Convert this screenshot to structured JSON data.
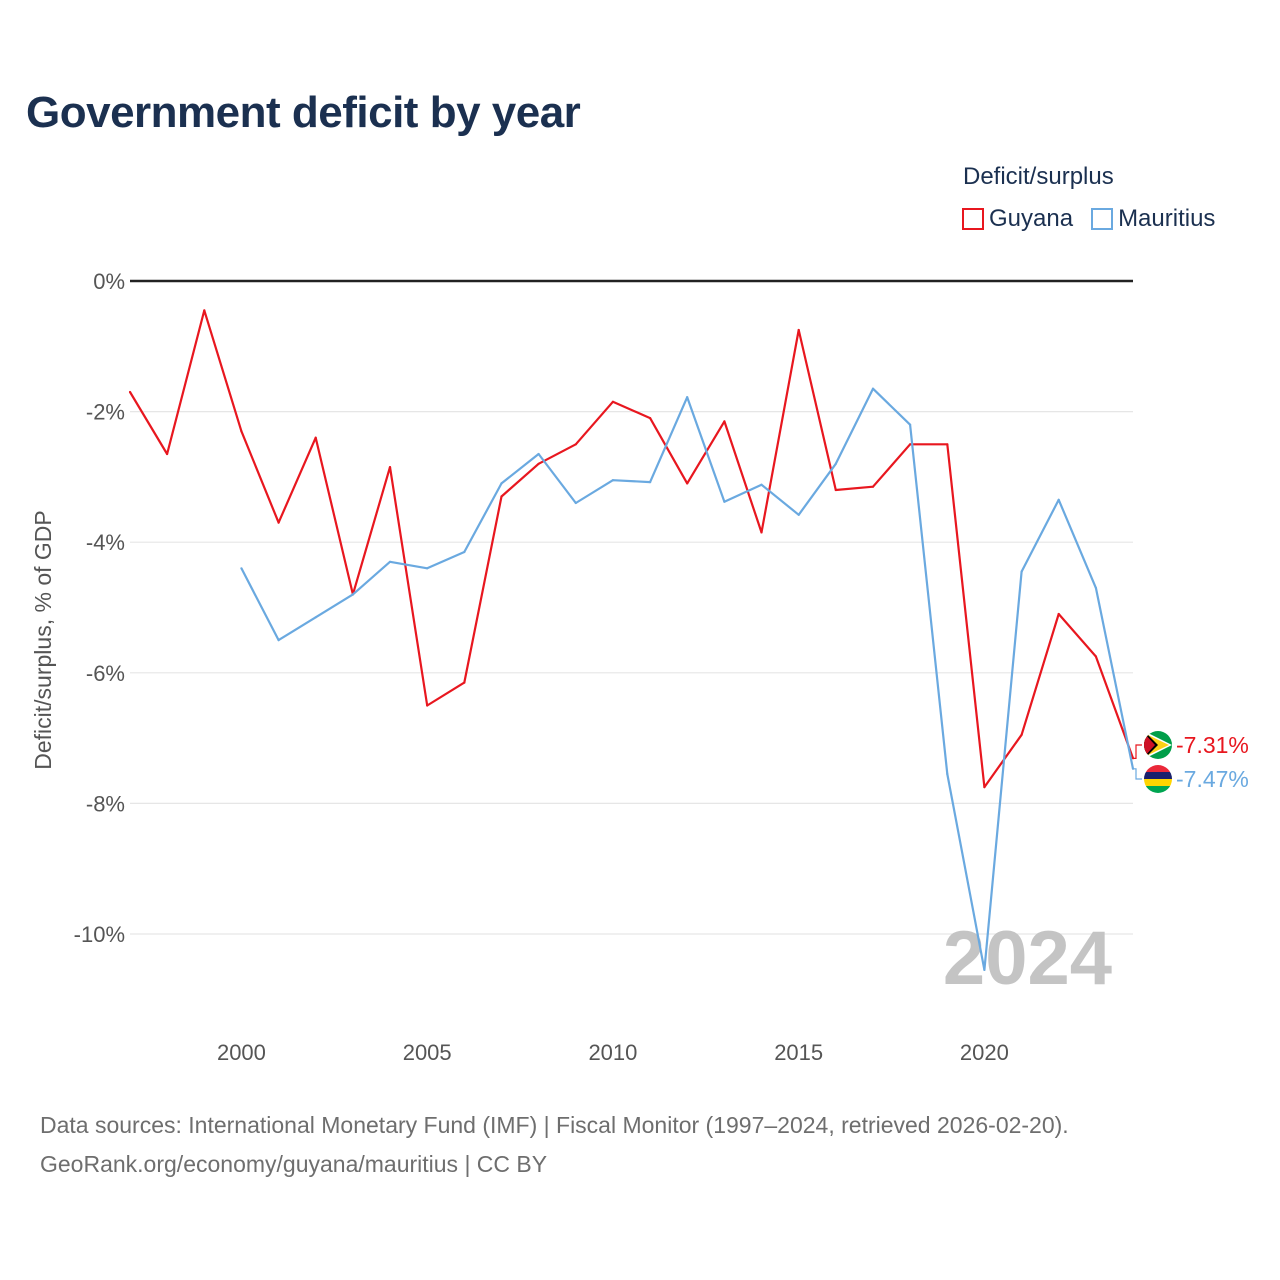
{
  "title": "Government deficit by year",
  "legend": {
    "title": "Deficit/surplus",
    "items": [
      {
        "name": "Guyana",
        "color": "#e8171f"
      },
      {
        "name": "Mauritius",
        "color": "#6aa9e0"
      }
    ]
  },
  "chart_data": {
    "type": "line",
    "title": "Government deficit by year",
    "xlabel": "",
    "ylabel": "Deficit/surplus, % of GDP",
    "xlim": [
      1997,
      2024
    ],
    "ylim": [
      -11.5,
      0
    ],
    "yticks": [
      0,
      -2,
      -4,
      -6,
      -8,
      -10
    ],
    "ytick_labels": [
      "0%",
      "-2%",
      "-4%",
      "-6%",
      "-8%",
      "-10%"
    ],
    "xticks": [
      2000,
      2005,
      2010,
      2015,
      2020
    ],
    "xtick_labels": [
      "2000",
      "2005",
      "2010",
      "2015",
      "2020"
    ],
    "watermark": "2024",
    "series": [
      {
        "name": "Guyana",
        "color": "#e8171f",
        "end_label": "-7.31%",
        "x": [
          1997,
          1998,
          1999,
          2000,
          2001,
          2002,
          2003,
          2004,
          2005,
          2006,
          2007,
          2008,
          2009,
          2010,
          2011,
          2012,
          2013,
          2014,
          2015,
          2016,
          2017,
          2018,
          2019,
          2020,
          2021,
          2022,
          2023,
          2024
        ],
        "values": [
          -1.7,
          -2.65,
          -0.45,
          -2.3,
          -3.7,
          -2.4,
          -4.8,
          -2.85,
          -6.5,
          -6.15,
          -3.3,
          -2.8,
          -2.5,
          -1.85,
          -2.1,
          -3.1,
          -2.15,
          -3.85,
          -0.75,
          -3.2,
          -3.15,
          -2.5,
          -2.5,
          -7.75,
          -6.95,
          -5.1,
          -5.75,
          -7.31
        ]
      },
      {
        "name": "Mauritius",
        "color": "#6aa9e0",
        "end_label": "-7.47%",
        "x": [
          2000,
          2001,
          2002,
          2003,
          2004,
          2005,
          2006,
          2007,
          2008,
          2009,
          2010,
          2011,
          2012,
          2013,
          2014,
          2015,
          2016,
          2017,
          2018,
          2019,
          2020,
          2021,
          2022,
          2023,
          2024
        ],
        "values": [
          -4.4,
          -5.5,
          -5.15,
          -4.8,
          -4.3,
          -4.4,
          -4.15,
          -3.1,
          -2.65,
          -3.4,
          -3.05,
          -3.08,
          -1.78,
          -3.38,
          -3.12,
          -3.58,
          -2.8,
          -1.65,
          -2.2,
          -7.55,
          -10.55,
          -4.45,
          -3.35,
          -4.7,
          -7.47
        ]
      }
    ]
  },
  "footer": {
    "line1": "Data sources: International Monetary Fund (IMF) | Fiscal Monitor (1997–2024, retrieved 2026-02-20).",
    "line2": "GeoRank.org/economy/guyana/mauritius | CC BY"
  }
}
